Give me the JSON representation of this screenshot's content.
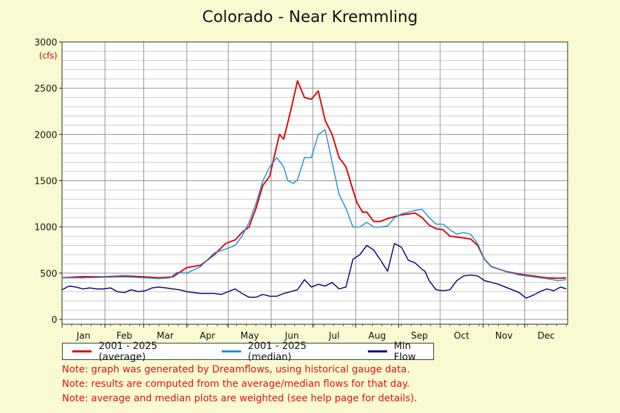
{
  "chart_data": {
    "type": "line",
    "title": "Colorado - Near Kremmling",
    "ylabel": "(cfs)",
    "xlabel": "",
    "xlim": [
      0,
      365
    ],
    "ylim": [
      0,
      3000
    ],
    "yticks": [
      0,
      500,
      1000,
      1500,
      2000,
      2500,
      3000
    ],
    "months": [
      "Jan",
      "Feb",
      "Mar",
      "Apr",
      "May",
      "Jun",
      "Jul",
      "Aug",
      "Sep",
      "Oct",
      "Nov",
      "Dec"
    ],
    "grid": true,
    "legend_position": "bottom",
    "series": [
      {
        "name": "2001 - 2025 (average)",
        "color": "#dd0000",
        "x": [
          0,
          15,
          30,
          45,
          60,
          70,
          80,
          90,
          100,
          110,
          118,
          125,
          130,
          135,
          140,
          145,
          150,
          153,
          157,
          160,
          165,
          170,
          175,
          180,
          185,
          190,
          195,
          200,
          205,
          210,
          213,
          217,
          220,
          225,
          230,
          235,
          240,
          245,
          250,
          255,
          260,
          265,
          270,
          275,
          280,
          285,
          290,
          295,
          300,
          305,
          310,
          320,
          330,
          340,
          350,
          358,
          364
        ],
        "y": [
          450,
          462,
          460,
          470,
          460,
          450,
          460,
          560,
          585,
          700,
          820,
          860,
          940,
          1000,
          1200,
          1450,
          1550,
          1750,
          2000,
          1950,
          2250,
          2580,
          2400,
          2380,
          2470,
          2150,
          2000,
          1750,
          1650,
          1400,
          1260,
          1160,
          1160,
          1060,
          1060,
          1090,
          1110,
          1130,
          1140,
          1150,
          1100,
          1020,
          980,
          970,
          900,
          890,
          880,
          870,
          800,
          650,
          570,
          520,
          490,
          470,
          450,
          445,
          450
        ]
      },
      {
        "name": "2001 - 2025 (median)",
        "color": "#1e8fdc",
        "x": [
          0,
          15,
          30,
          45,
          60,
          70,
          78,
          83,
          90,
          100,
          110,
          118,
          125,
          130,
          135,
          140,
          145,
          150,
          155,
          160,
          163,
          167,
          170,
          175,
          180,
          185,
          190,
          195,
          200,
          205,
          210,
          215,
          220,
          225,
          230,
          235,
          240,
          245,
          250,
          255,
          260,
          265,
          270,
          275,
          280,
          285,
          290,
          295,
          300,
          305,
          310,
          320,
          330,
          340,
          350,
          358,
          364
        ],
        "y": [
          450,
          450,
          455,
          460,
          450,
          440,
          450,
          510,
          500,
          570,
          720,
          760,
          800,
          900,
          1050,
          1250,
          1500,
          1650,
          1750,
          1650,
          1500,
          1470,
          1510,
          1750,
          1750,
          2000,
          2050,
          1700,
          1350,
          1200,
          1000,
          1000,
          1050,
          1000,
          1000,
          1010,
          1100,
          1140,
          1160,
          1180,
          1190,
          1100,
          1030,
          1030,
          970,
          920,
          940,
          920,
          820,
          650,
          570,
          520,
          480,
          460,
          440,
          420,
          430
        ]
      },
      {
        "name": "Min Flow",
        "color": "#000080",
        "x": [
          0,
          5,
          10,
          15,
          20,
          25,
          30,
          35,
          40,
          45,
          50,
          55,
          60,
          65,
          70,
          75,
          80,
          85,
          90,
          95,
          100,
          105,
          110,
          115,
          120,
          125,
          130,
          135,
          140,
          145,
          150,
          155,
          160,
          165,
          170,
          175,
          180,
          185,
          190,
          195,
          200,
          205,
          210,
          215,
          220,
          225,
          230,
          235,
          240,
          245,
          250,
          255,
          260,
          262,
          265,
          270,
          275,
          280,
          285,
          290,
          295,
          300,
          305,
          310,
          315,
          320,
          325,
          330,
          335,
          340,
          345,
          350,
          355,
          360,
          364
        ],
        "y": [
          320,
          360,
          350,
          330,
          340,
          330,
          330,
          340,
          300,
          290,
          320,
          300,
          310,
          340,
          350,
          340,
          330,
          320,
          300,
          290,
          280,
          280,
          280,
          270,
          300,
          330,
          280,
          240,
          240,
          270,
          250,
          250,
          280,
          300,
          320,
          430,
          350,
          380,
          360,
          400,
          330,
          350,
          650,
          700,
          800,
          750,
          640,
          520,
          820,
          780,
          640,
          610,
          540,
          520,
          420,
          320,
          310,
          320,
          420,
          470,
          480,
          470,
          420,
          400,
          380,
          350,
          320,
          290,
          230,
          260,
          300,
          330,
          310,
          350,
          330
        ]
      }
    ]
  },
  "notes": [
    "Note: graph was generated by Dreamflows, using historical gauge data.",
    "Note: results are computed from the average/median flows for that day.",
    "Note: average and median plots are weighted (see help page for details)."
  ]
}
